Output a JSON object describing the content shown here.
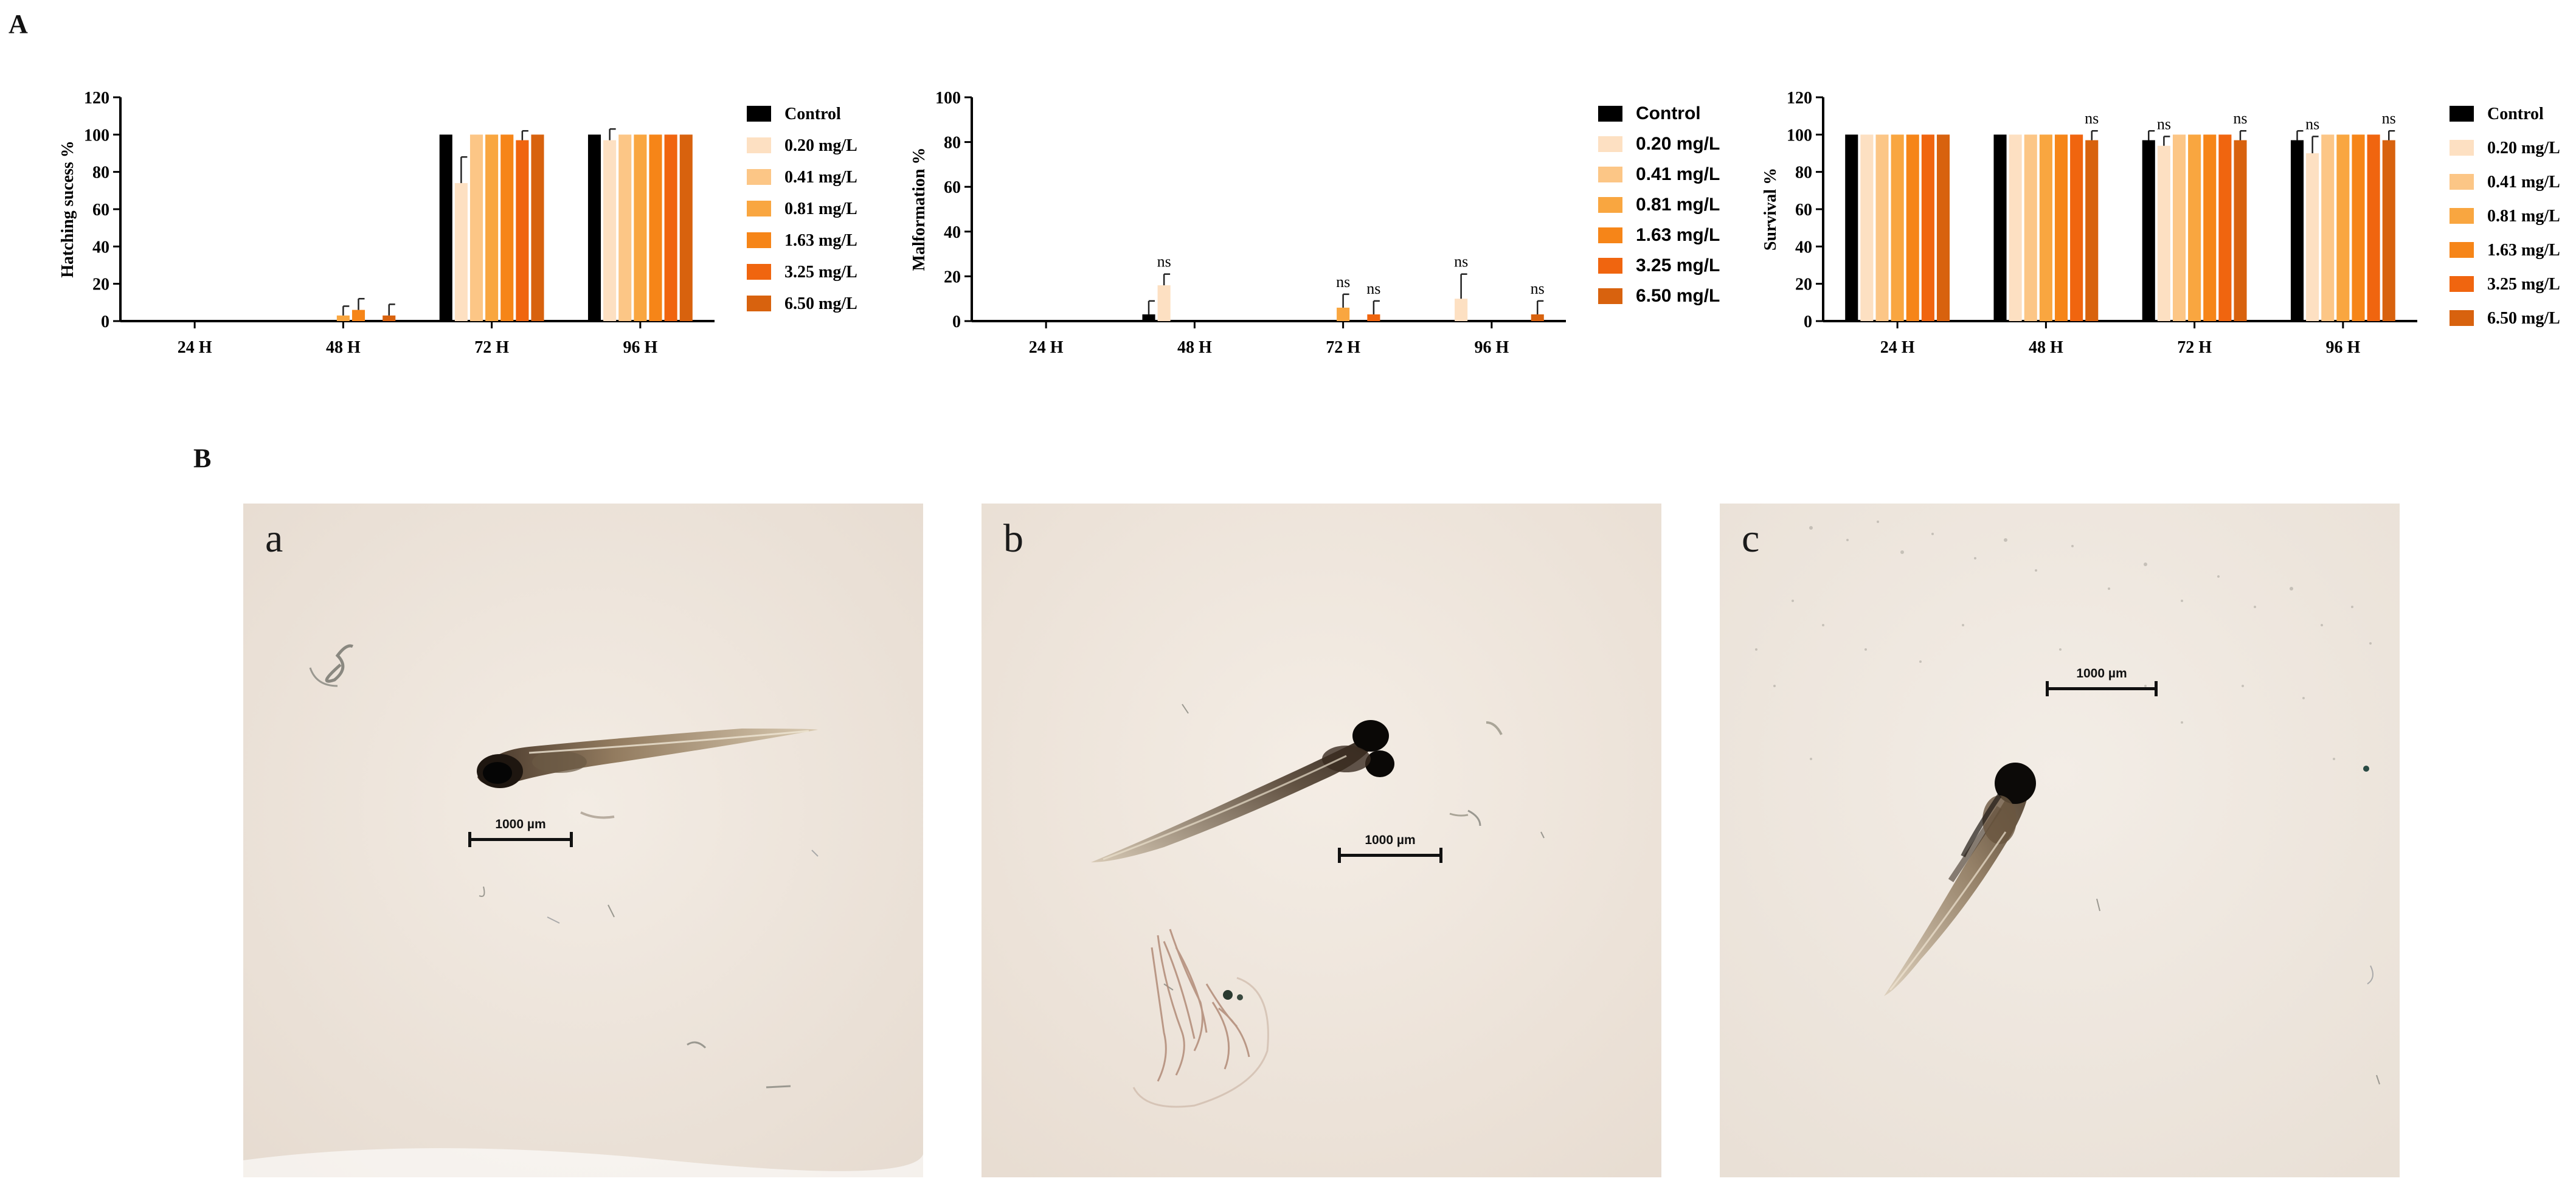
{
  "panel_labels": {
    "a": "A",
    "b": "B"
  },
  "colors": {
    "Control": "#000000",
    "0.20 mg/L": "#fde0c2",
    "0.41 mg/L": "#fcc686",
    "0.81 mg/L": "#f9a640",
    "1.63 mg/L": "#f68518",
    "3.25 mg/L": "#f0650f",
    "6.50 mg/L": "#d8620e"
  },
  "chart_data": [
    {
      "type": "bar",
      "ylabel": "Hatching sucess %",
      "ylim": [
        0,
        120
      ],
      "yticks": [
        0,
        20,
        40,
        60,
        80,
        100,
        120
      ],
      "categories": [
        "24 H",
        "48 H",
        "72 H",
        "96 H"
      ],
      "legend_position": "right",
      "legend_style": "serif",
      "series": [
        {
          "name": "Control",
          "values": [
            0,
            0,
            100,
            100
          ],
          "errors": [
            0,
            0,
            0,
            0
          ],
          "labels": [
            "",
            "",
            "",
            ""
          ]
        },
        {
          "name": "0.20 mg/L",
          "values": [
            0,
            0,
            74,
            97
          ],
          "errors": [
            0,
            0,
            14,
            6
          ],
          "labels": [
            "",
            "",
            "",
            ""
          ]
        },
        {
          "name": "0.41 mg/L",
          "values": [
            0,
            0,
            100,
            100
          ],
          "errors": [
            0,
            0,
            0,
            0
          ],
          "labels": [
            "",
            "",
            "",
            ""
          ]
        },
        {
          "name": "0.81 mg/L",
          "values": [
            0,
            3,
            100,
            100
          ],
          "errors": [
            0,
            5,
            0,
            0
          ],
          "labels": [
            "",
            "",
            "",
            ""
          ]
        },
        {
          "name": "1.63 mg/L",
          "values": [
            0,
            6,
            100,
            100
          ],
          "errors": [
            0,
            6,
            0,
            0
          ],
          "labels": [
            "",
            "",
            "",
            ""
          ]
        },
        {
          "name": "3.25 mg/L",
          "values": [
            0,
            0,
            97,
            100
          ],
          "errors": [
            0,
            0,
            5,
            0
          ],
          "labels": [
            "",
            "",
            "",
            ""
          ]
        },
        {
          "name": "6.50 mg/L",
          "values": [
            0,
            3,
            100,
            100
          ],
          "errors": [
            0,
            6,
            0,
            0
          ],
          "labels": [
            "",
            "",
            "",
            ""
          ]
        }
      ]
    },
    {
      "type": "bar",
      "ylabel": "Malformation %",
      "ylim": [
        0,
        100
      ],
      "yticks": [
        0,
        20,
        40,
        60,
        80,
        100
      ],
      "categories": [
        "24 H",
        "48 H",
        "72 H",
        "96 H"
      ],
      "legend_position": "right",
      "legend_style": "sans",
      "series": [
        {
          "name": "Control",
          "values": [
            0,
            3,
            0,
            0
          ],
          "errors": [
            0,
            6,
            0,
            0
          ],
          "labels": [
            "",
            "",
            "",
            ""
          ]
        },
        {
          "name": "0.20 mg/L",
          "values": [
            0,
            16,
            0,
            0
          ],
          "errors": [
            0,
            5,
            0,
            0
          ],
          "labels": [
            "",
            "ns",
            "",
            ""
          ]
        },
        {
          "name": "0.41 mg/L",
          "values": [
            0,
            0,
            0,
            0
          ],
          "errors": [
            0,
            0,
            0,
            0
          ],
          "labels": [
            "",
            "",
            "",
            ""
          ]
        },
        {
          "name": "0.81 mg/L",
          "values": [
            0,
            0,
            6,
            0
          ],
          "errors": [
            0,
            0,
            6,
            0
          ],
          "labels": [
            "",
            "",
            "ns",
            ""
          ]
        },
        {
          "name": "1.63 mg/L",
          "values": [
            0,
            0,
            0,
            0
          ],
          "errors": [
            0,
            0,
            0,
            0
          ],
          "labels": [
            "",
            "",
            "",
            ""
          ]
        },
        {
          "name": "3.25 mg/L",
          "values": [
            0,
            0,
            3,
            0
          ],
          "errors": [
            0,
            0,
            6,
            0
          ],
          "labels": [
            "",
            "",
            "ns",
            ""
          ]
        },
        {
          "name": "6.50 mg/L",
          "values": [
            0,
            0,
            0,
            3
          ],
          "errors": [
            0,
            0,
            0,
            6
          ],
          "labels": [
            "",
            "",
            "",
            "ns"
          ]
        },
        {
          "name": "0.20 mg/L*",
          "hidden": true,
          "values": [
            0,
            0,
            0,
            10
          ],
          "errors": [
            0,
            0,
            0,
            11
          ],
          "labels": [
            "",
            "",
            "",
            "ns"
          ]
        }
      ]
    },
    {
      "type": "bar",
      "ylabel": "Survival %",
      "ylim": [
        0,
        120
      ],
      "yticks": [
        0,
        20,
        40,
        60,
        80,
        100,
        120
      ],
      "categories": [
        "24 H",
        "48 H",
        "72 H",
        "96 H"
      ],
      "legend_position": "right",
      "legend_style": "serif",
      "series": [
        {
          "name": "Control",
          "values": [
            100,
            100,
            97,
            97
          ],
          "errors": [
            0,
            0,
            5,
            5
          ],
          "labels": [
            "",
            "",
            "",
            ""
          ]
        },
        {
          "name": "0.20 mg/L",
          "values": [
            100,
            100,
            94,
            90
          ],
          "errors": [
            0,
            0,
            5,
            9
          ],
          "labels": [
            "",
            "",
            "ns",
            "ns"
          ]
        },
        {
          "name": "0.41 mg/L",
          "values": [
            100,
            100,
            100,
            100
          ],
          "errors": [
            0,
            0,
            0,
            0
          ],
          "labels": [
            "",
            "",
            "",
            ""
          ]
        },
        {
          "name": "0.81 mg/L",
          "values": [
            100,
            100,
            100,
            100
          ],
          "errors": [
            0,
            0,
            0,
            0
          ],
          "labels": [
            "",
            "",
            "",
            ""
          ]
        },
        {
          "name": "1.63 mg/L",
          "values": [
            100,
            100,
            100,
            100
          ],
          "errors": [
            0,
            0,
            0,
            0
          ],
          "labels": [
            "",
            "",
            "",
            ""
          ]
        },
        {
          "name": "3.25 mg/L",
          "values": [
            100,
            100,
            100,
            100
          ],
          "errors": [
            0,
            0,
            0,
            0
          ],
          "labels": [
            "",
            "",
            "",
            ""
          ]
        },
        {
          "name": "6.50 mg/L",
          "values": [
            100,
            97,
            97,
            97
          ],
          "errors": [
            0,
            5,
            5,
            5
          ],
          "labels": [
            "",
            "ns",
            "ns",
            "ns"
          ]
        }
      ]
    }
  ],
  "photos": [
    {
      "letter": "a",
      "scale_bar": "1000 µm"
    },
    {
      "letter": "b",
      "scale_bar": "1000 µm"
    },
    {
      "letter": "c",
      "scale_bar": "1000 µm"
    }
  ]
}
